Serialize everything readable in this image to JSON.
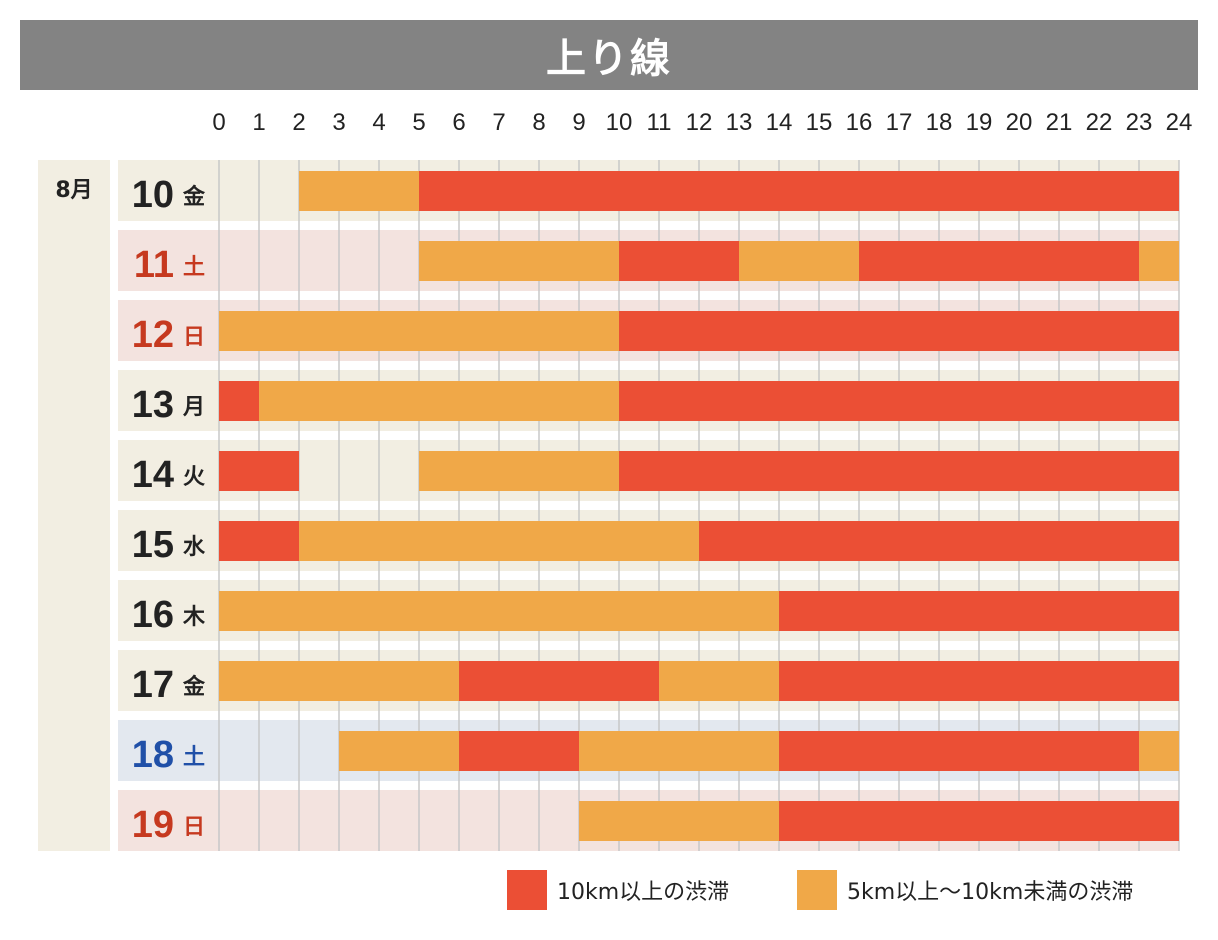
{
  "title": "上り線",
  "month": "8月",
  "colors": {
    "heavy": "#eb4f35",
    "moderate": "#f0a848",
    "band_weekday": "#f2eee2",
    "band_saturday_red": "#f3e3df",
    "band_sunday": "#f3e3df",
    "band_saturday_blue": "#e3e8ef",
    "day_black": "#222222",
    "day_red": "#c6391f",
    "day_blue": "#2050a8"
  },
  "legend": [
    {
      "key": "heavy",
      "label": "10km以上の渋滞"
    },
    {
      "key": "moderate",
      "label": "5km以上〜10km未満の渋滞"
    }
  ],
  "chart_data": {
    "type": "gantt",
    "title": "上り線",
    "x_unit": "hour",
    "xlim": [
      0,
      24
    ],
    "x_ticks": [
      "0",
      "1",
      "2",
      "3",
      "4",
      "5",
      "6",
      "7",
      "8",
      "9",
      "10",
      "11",
      "12",
      "13",
      "14",
      "15",
      "16",
      "17",
      "18",
      "19",
      "20",
      "21",
      "22",
      "23",
      "24"
    ],
    "days": [
      {
        "date": "10",
        "weekday": "金",
        "style": "weekday",
        "segments": [
          {
            "start": 2,
            "end": 5,
            "level": "moderate"
          },
          {
            "start": 5,
            "end": 24,
            "level": "heavy"
          }
        ]
      },
      {
        "date": "11",
        "weekday": "土",
        "style": "holiday",
        "segments": [
          {
            "start": 5,
            "end": 10,
            "level": "moderate"
          },
          {
            "start": 10,
            "end": 13,
            "level": "heavy"
          },
          {
            "start": 13,
            "end": 16,
            "level": "moderate"
          },
          {
            "start": 16,
            "end": 23,
            "level": "heavy"
          },
          {
            "start": 23,
            "end": 24,
            "level": "moderate"
          }
        ]
      },
      {
        "date": "12",
        "weekday": "日",
        "style": "holiday",
        "segments": [
          {
            "start": 0,
            "end": 10,
            "level": "moderate"
          },
          {
            "start": 10,
            "end": 24,
            "level": "heavy"
          }
        ]
      },
      {
        "date": "13",
        "weekday": "月",
        "style": "weekday",
        "segments": [
          {
            "start": 0,
            "end": 1,
            "level": "heavy"
          },
          {
            "start": 1,
            "end": 10,
            "level": "moderate"
          },
          {
            "start": 10,
            "end": 24,
            "level": "heavy"
          }
        ]
      },
      {
        "date": "14",
        "weekday": "火",
        "style": "weekday",
        "segments": [
          {
            "start": 0,
            "end": 2,
            "level": "heavy"
          },
          {
            "start": 5,
            "end": 10,
            "level": "moderate"
          },
          {
            "start": 10,
            "end": 24,
            "level": "heavy"
          }
        ]
      },
      {
        "date": "15",
        "weekday": "水",
        "style": "weekday",
        "segments": [
          {
            "start": 0,
            "end": 2,
            "level": "heavy"
          },
          {
            "start": 2,
            "end": 12,
            "level": "moderate"
          },
          {
            "start": 12,
            "end": 24,
            "level": "heavy"
          }
        ]
      },
      {
        "date": "16",
        "weekday": "木",
        "style": "weekday",
        "segments": [
          {
            "start": 0,
            "end": 14,
            "level": "moderate"
          },
          {
            "start": 14,
            "end": 24,
            "level": "heavy"
          }
        ]
      },
      {
        "date": "17",
        "weekday": "金",
        "style": "weekday",
        "segments": [
          {
            "start": 0,
            "end": 6,
            "level": "moderate"
          },
          {
            "start": 6,
            "end": 11,
            "level": "heavy"
          },
          {
            "start": 11,
            "end": 14,
            "level": "moderate"
          },
          {
            "start": 14,
            "end": 24,
            "level": "heavy"
          }
        ]
      },
      {
        "date": "18",
        "weekday": "土",
        "style": "saturday",
        "segments": [
          {
            "start": 3,
            "end": 6,
            "level": "moderate"
          },
          {
            "start": 6,
            "end": 9,
            "level": "heavy"
          },
          {
            "start": 9,
            "end": 14,
            "level": "moderate"
          },
          {
            "start": 14,
            "end": 23,
            "level": "heavy"
          },
          {
            "start": 23,
            "end": 24,
            "level": "moderate"
          }
        ]
      },
      {
        "date": "19",
        "weekday": "日",
        "style": "holiday",
        "segments": [
          {
            "start": 9,
            "end": 14,
            "level": "moderate"
          },
          {
            "start": 14,
            "end": 24,
            "level": "heavy"
          }
        ]
      }
    ]
  }
}
